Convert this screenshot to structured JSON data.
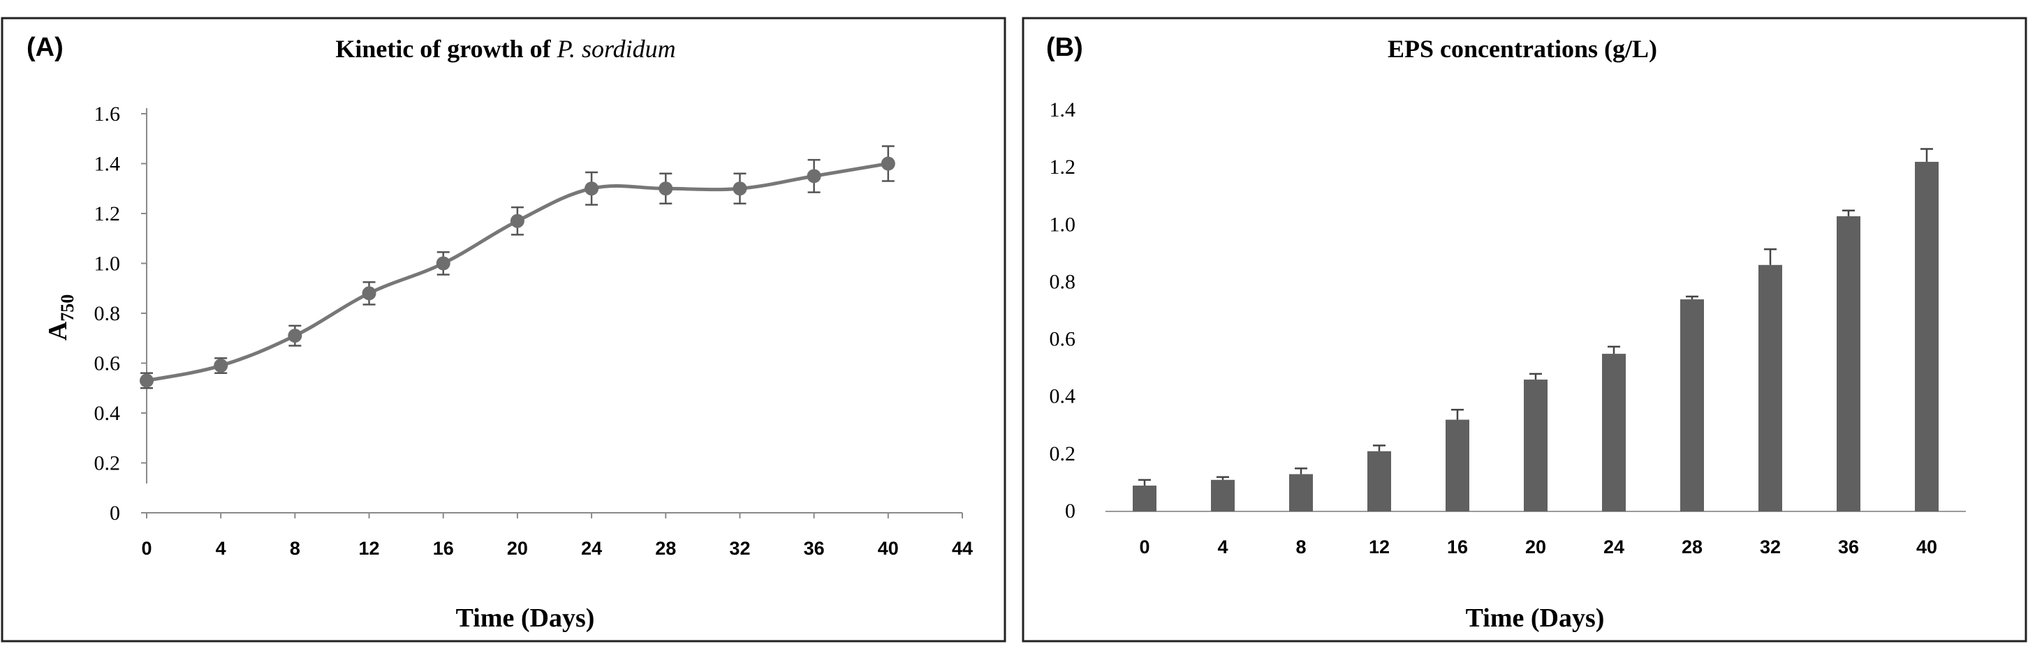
{
  "chart_data": [
    {
      "type": "line",
      "panel_label": "(A)",
      "title_prefix": "Kinetic of growth of ",
      "title_italic": "P. sordidum",
      "xlabel": "Time (Days)",
      "ylabel_main": "A",
      "ylabel_sub": "750",
      "x": [
        0,
        4,
        8,
        12,
        16,
        20,
        24,
        28,
        32,
        36,
        40
      ],
      "values": [
        0.53,
        0.59,
        0.71,
        0.88,
        1.0,
        1.17,
        1.3,
        1.3,
        1.3,
        1.35,
        1.4
      ],
      "errors": [
        0.03,
        0.03,
        0.04,
        0.045,
        0.045,
        0.055,
        0.065,
        0.06,
        0.06,
        0.065,
        0.07
      ],
      "xticks": [
        "0",
        "4",
        "8",
        "12",
        "16",
        "20",
        "24",
        "28",
        "32",
        "36",
        "40",
        "44"
      ],
      "yticks": [
        "0",
        "0.2",
        "0.4",
        "0.6",
        "0.8",
        "1.0",
        "1.2",
        "1.4",
        "1.6"
      ],
      "xlim": [
        0,
        44
      ],
      "ylim": [
        0,
        1.6
      ],
      "grid": false,
      "color": "#777777"
    },
    {
      "type": "bar",
      "panel_label": "(B)",
      "title": "EPS concentrations (g/L)",
      "xlabel": "Time (Days)",
      "categories": [
        "0",
        "4",
        "8",
        "12",
        "16",
        "20",
        "24",
        "28",
        "32",
        "36",
        "40"
      ],
      "values": [
        0.09,
        0.11,
        0.13,
        0.21,
        0.32,
        0.46,
        0.55,
        0.74,
        0.86,
        1.03,
        1.22
      ],
      "errors": [
        0.02,
        0.01,
        0.02,
        0.02,
        0.035,
        0.02,
        0.025,
        0.01,
        0.055,
        0.02,
        0.045
      ],
      "yticks": [
        "0",
        "0.2",
        "0.4",
        "0.6",
        "0.8",
        "1.0",
        "1.2",
        "1.4"
      ],
      "ylim": [
        0,
        1.4
      ],
      "grid": false,
      "color": "#606060"
    }
  ]
}
